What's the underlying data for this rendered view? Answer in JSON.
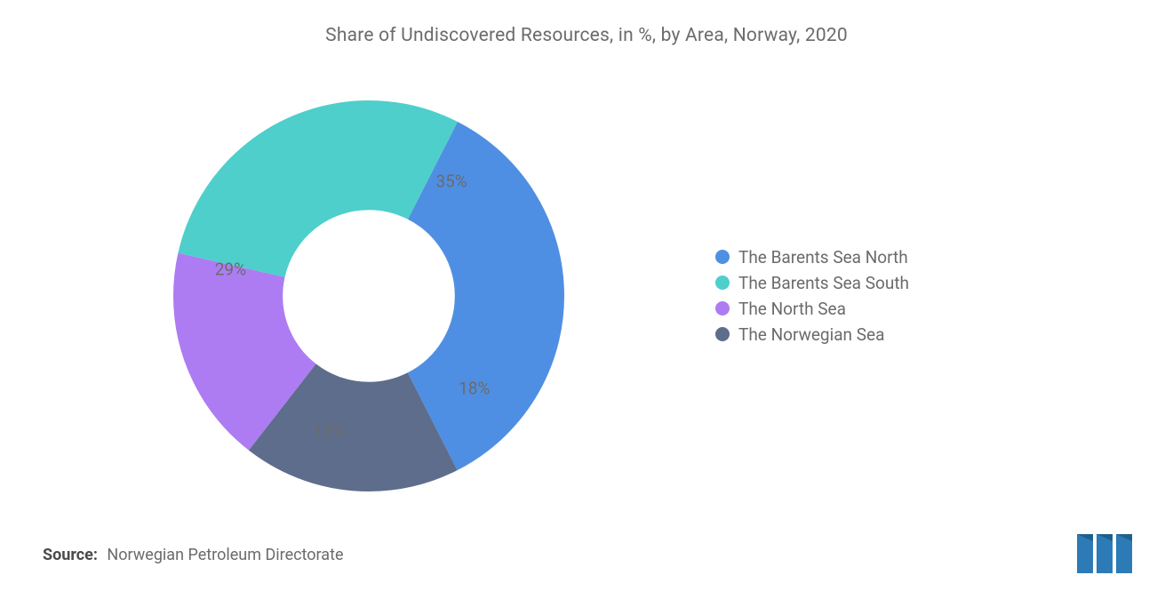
{
  "title": "Share of Undiscovered Resources, in %, by Area, Norway, 2020",
  "source_prefix": "Source:",
  "source_text": "Norwegian Petroleum Directorate",
  "chart": {
    "type": "donut",
    "background_color": "#ffffff",
    "title_color": "#6b6b6b",
    "title_fontsize": 21,
    "label_fontsize": 19,
    "label_color": "#6b6b6b",
    "legend_fontsize": 19,
    "legend_color": "#6b6b6b",
    "donut_outer_radius_pct": 100,
    "donut_inner_radius_pct": 44,
    "slices": [
      {
        "label": "The Barents Sea North",
        "value": 35,
        "display": "35%",
        "color": "#4f8fe3"
      },
      {
        "label": "The Norwegian Sea",
        "value": 18,
        "display": "18%",
        "color": "#5e6d8c"
      },
      {
        "label": "The North Sea",
        "value": 18,
        "display": "18%",
        "color": "#ad7cf2"
      },
      {
        "label": "The Barents Sea South",
        "value": 29,
        "display": "29%",
        "color": "#4ecfcb"
      }
    ],
    "legend_order": [
      0,
      3,
      2,
      1
    ],
    "start_angle_deg": -27
  },
  "logo": {
    "bar_color_1": "#2d7bb6",
    "bar_color_2": "#1f5f8b",
    "bg": "#ffffff"
  }
}
